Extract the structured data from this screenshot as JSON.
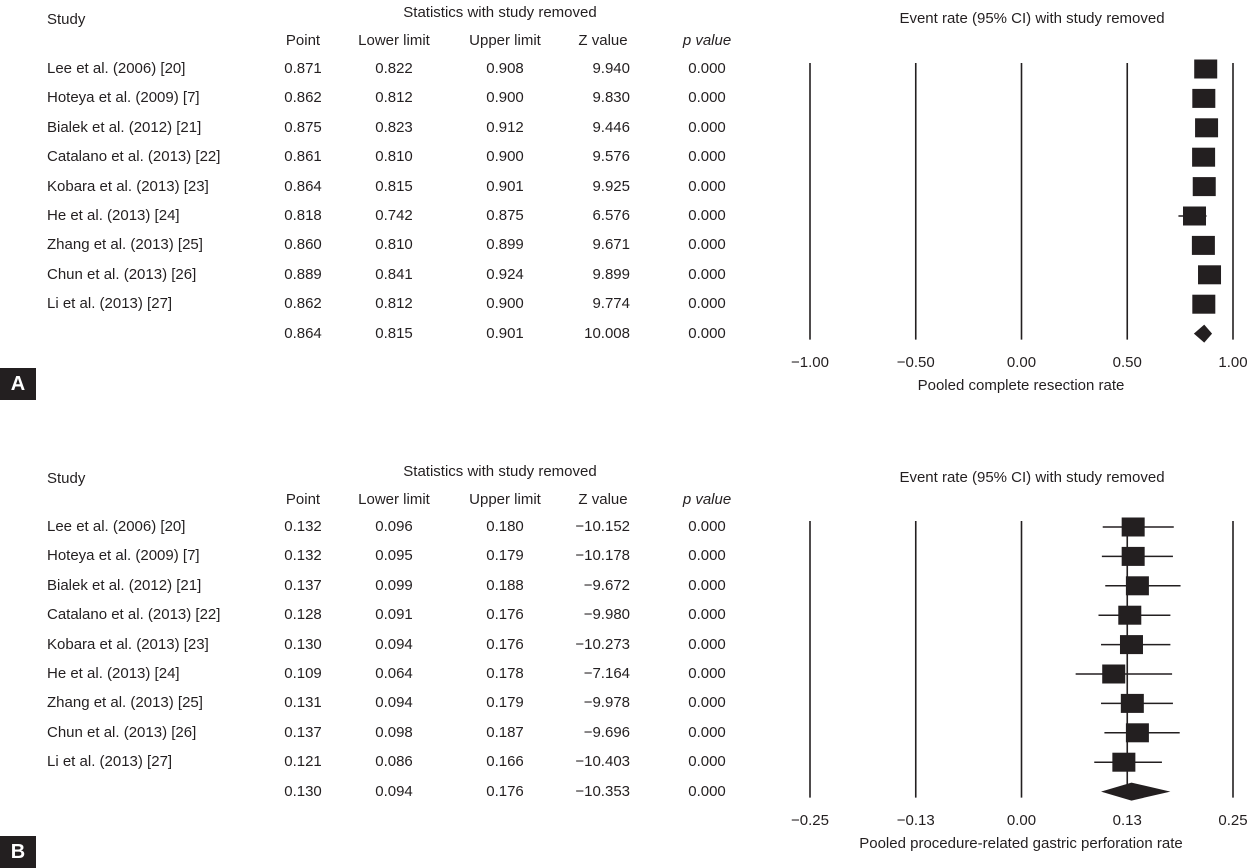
{
  "chart_data": [
    {
      "panel": "A",
      "type": "forest",
      "study_header": "Study",
      "stats_header": "Statistics with study removed",
      "columns": [
        "Point",
        "Lower limit",
        "Upper limit",
        "Z value",
        "p value"
      ],
      "plot_title": "Event rate (95% CI) with study removed",
      "xlabel": "Pooled complete resection rate",
      "xlim": [
        -1.0,
        1.0
      ],
      "xticks": [
        "−1.00",
        "−0.50",
        "0.00",
        "0.50",
        "1.00"
      ],
      "xtick_values": [
        -1.0,
        -0.5,
        0.0,
        0.5,
        1.0
      ],
      "grid": "vertical lines at ticks",
      "rows": [
        {
          "study": "Lee et al. (2006) [20]",
          "point": "0.871",
          "lower": "0.822",
          "upper": "0.908",
          "z": "9.940",
          "p": "0.000"
        },
        {
          "study": "Hoteya et al. (2009) [7]",
          "point": "0.862",
          "lower": "0.812",
          "upper": "0.900",
          "z": "9.830",
          "p": "0.000"
        },
        {
          "study": "Bialek et al. (2012) [21]",
          "point": "0.875",
          "lower": "0.823",
          "upper": "0.912",
          "z": "9.446",
          "p": "0.000"
        },
        {
          "study": "Catalano et al. (2013) [22]",
          "point": "0.861",
          "lower": "0.810",
          "upper": "0.900",
          "z": "9.576",
          "p": "0.000"
        },
        {
          "study": "Kobara et al. (2013) [23]",
          "point": "0.864",
          "lower": "0.815",
          "upper": "0.901",
          "z": "9.925",
          "p": "0.000"
        },
        {
          "study": "He et al. (2013) [24]",
          "point": "0.818",
          "lower": "0.742",
          "upper": "0.875",
          "z": "6.576",
          "p": "0.000"
        },
        {
          "study": "Zhang et al. (2013) [25]",
          "point": "0.860",
          "lower": "0.810",
          "upper": "0.899",
          "z": "9.671",
          "p": "0.000"
        },
        {
          "study": "Chun et al. (2013) [26]",
          "point": "0.889",
          "lower": "0.841",
          "upper": "0.924",
          "z": "9.899",
          "p": "0.000"
        },
        {
          "study": "Li et al. (2013) [27]",
          "point": "0.862",
          "lower": "0.812",
          "upper": "0.900",
          "z": "9.774",
          "p": "0.000"
        }
      ],
      "pooled": {
        "point": "0.864",
        "lower": "0.815",
        "upper": "0.901",
        "z": "10.008",
        "p": "0.000"
      }
    },
    {
      "panel": "B",
      "type": "forest",
      "study_header": "Study",
      "stats_header": "Statistics with study removed",
      "columns": [
        "Point",
        "Lower limit",
        "Upper limit",
        "Z value",
        "p value"
      ],
      "plot_title": "Event rate (95% CI) with study removed",
      "xlabel": "Pooled procedure-related gastric perforation rate",
      "xlim": [
        -0.25,
        0.25
      ],
      "xticks": [
        "−0.25",
        "−0.13",
        "0.00",
        "0.13",
        "0.25"
      ],
      "xtick_values": [
        -0.25,
        -0.125,
        0.0,
        0.125,
        0.25
      ],
      "grid": "vertical lines at ticks",
      "rows": [
        {
          "study": "Lee et al. (2006) [20]",
          "point": "0.132",
          "lower": "0.096",
          "upper": "0.180",
          "z": "−10.152",
          "p": "0.000"
        },
        {
          "study": "Hoteya et al. (2009) [7]",
          "point": "0.132",
          "lower": "0.095",
          "upper": "0.179",
          "z": "−10.178",
          "p": "0.000"
        },
        {
          "study": "Bialek et al. (2012) [21]",
          "point": "0.137",
          "lower": "0.099",
          "upper": "0.188",
          "z": "−9.672",
          "p": "0.000"
        },
        {
          "study": "Catalano et al. (2013) [22]",
          "point": "0.128",
          "lower": "0.091",
          "upper": "0.176",
          "z": "−9.980",
          "p": "0.000"
        },
        {
          "study": "Kobara et al. (2013) [23]",
          "point": "0.130",
          "lower": "0.094",
          "upper": "0.176",
          "z": "−10.273",
          "p": "0.000"
        },
        {
          "study": "He et al. (2013) [24]",
          "point": "0.109",
          "lower": "0.064",
          "upper": "0.178",
          "z": "−7.164",
          "p": "0.000"
        },
        {
          "study": "Zhang et al. (2013) [25]",
          "point": "0.131",
          "lower": "0.094",
          "upper": "0.179",
          "z": "−9.978",
          "p": "0.000"
        },
        {
          "study": "Chun et al. (2013) [26]",
          "point": "0.137",
          "lower": "0.098",
          "upper": "0.187",
          "z": "−9.696",
          "p": "0.000"
        },
        {
          "study": "Li et al. (2013) [27]",
          "point": "0.121",
          "lower": "0.086",
          "upper": "0.166",
          "z": "−10.403",
          "p": "0.000"
        }
      ],
      "pooled": {
        "point": "0.130",
        "lower": "0.094",
        "upper": "0.176",
        "z": "−10.353",
        "p": "0.000"
      }
    }
  ],
  "colors": {
    "ink": "#231f20",
    "background": "#ffffff"
  }
}
